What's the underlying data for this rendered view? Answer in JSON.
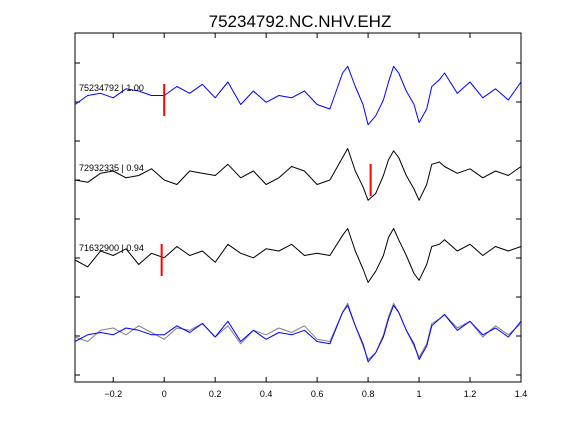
{
  "chart_data": {
    "type": "line",
    "title": "75234792.NC.NHV.EHZ",
    "xlabel": "",
    "ylabel": "",
    "xlim": [
      -0.35,
      1.4
    ],
    "x_ticks": [
      -0.2,
      0,
      0.2,
      0.4,
      0.6,
      0.8,
      1,
      1.2,
      1.4
    ],
    "x_tick_labels": [
      "−0.2",
      "0",
      "0.2",
      "0.4",
      "0.6",
      "0.8",
      "1",
      "1.2",
      "1.4"
    ],
    "grid": false,
    "colors": {
      "primary": "#0000ff",
      "secondary": "#000000",
      "overlay": "#808080",
      "pick": "#ff0000"
    },
    "traces": [
      {
        "label": "75234792 | 1.00",
        "color": "#0000ff",
        "offset": 3,
        "pick_time": 0.0,
        "x": [
          -0.35,
          -0.3,
          -0.25,
          -0.2,
          -0.15,
          -0.1,
          -0.05,
          0,
          0.05,
          0.1,
          0.15,
          0.2,
          0.25,
          0.3,
          0.35,
          0.4,
          0.45,
          0.5,
          0.55,
          0.6,
          0.65,
          0.7,
          0.72,
          0.75,
          0.78,
          0.8,
          0.83,
          0.86,
          0.88,
          0.9,
          0.92,
          0.95,
          0.98,
          1.0,
          1.03,
          1.05,
          1.08,
          1.1,
          1.15,
          1.2,
          1.25,
          1.3,
          1.35,
          1.4
        ],
        "y": [
          -0.1,
          0.1,
          0.15,
          0.05,
          0.25,
          0.2,
          0.1,
          0.1,
          0.3,
          0.15,
          0.35,
          0.05,
          0.4,
          -0.1,
          0.2,
          -0.05,
          0.1,
          0.05,
          0.2,
          -0.1,
          -0.2,
          0.6,
          0.75,
          0.3,
          -0.1,
          -0.55,
          -0.35,
          0.0,
          0.4,
          0.75,
          0.6,
          0.2,
          -0.1,
          -0.5,
          -0.2,
          0.3,
          0.45,
          0.6,
          0.15,
          0.4,
          0.05,
          0.25,
          0.0,
          0.4
        ]
      },
      {
        "label": "72932335 | 0.94",
        "color": "#000000",
        "offset": 2,
        "pick_time": 0.81,
        "x": [
          -0.35,
          -0.3,
          -0.25,
          -0.2,
          -0.15,
          -0.1,
          -0.05,
          0,
          0.05,
          0.1,
          0.15,
          0.2,
          0.25,
          0.3,
          0.35,
          0.4,
          0.45,
          0.5,
          0.55,
          0.6,
          0.65,
          0.7,
          0.72,
          0.75,
          0.78,
          0.8,
          0.83,
          0.86,
          0.88,
          0.9,
          0.92,
          0.95,
          0.98,
          1.0,
          1.03,
          1.05,
          1.08,
          1.1,
          1.15,
          1.2,
          1.25,
          1.3,
          1.35,
          1.4
        ],
        "y": [
          0.0,
          -0.05,
          0.15,
          0.2,
          0.05,
          0.1,
          0.25,
          0.0,
          -0.1,
          0.2,
          0.15,
          0.1,
          0.35,
          0.05,
          0.2,
          -0.1,
          0.05,
          0.3,
          0.2,
          -0.1,
          0.0,
          0.5,
          0.7,
          0.2,
          -0.15,
          -0.45,
          -0.3,
          0.1,
          0.45,
          0.65,
          0.5,
          0.1,
          -0.2,
          -0.45,
          -0.1,
          0.35,
          0.4,
          0.3,
          0.15,
          0.25,
          0.05,
          0.2,
          0.1,
          0.3
        ]
      },
      {
        "label": "71632900 | 0.94",
        "color": "#000000",
        "offset": 1,
        "pick_time": -0.01,
        "x": [
          -0.35,
          -0.3,
          -0.25,
          -0.2,
          -0.15,
          -0.1,
          -0.05,
          0,
          0.05,
          0.1,
          0.15,
          0.2,
          0.25,
          0.3,
          0.35,
          0.4,
          0.45,
          0.5,
          0.55,
          0.6,
          0.65,
          0.7,
          0.72,
          0.75,
          0.78,
          0.8,
          0.83,
          0.86,
          0.88,
          0.9,
          0.92,
          0.95,
          0.98,
          1.0,
          1.03,
          1.05,
          1.08,
          1.1,
          1.15,
          1.2,
          1.25,
          1.3,
          1.35,
          1.4
        ],
        "y": [
          0.0,
          -0.15,
          0.2,
          0.1,
          0.25,
          -0.1,
          0.15,
          0.05,
          0.3,
          0.1,
          0.2,
          -0.05,
          0.35,
          0.15,
          0.05,
          0.25,
          0.2,
          0.35,
          0.1,
          0.15,
          0.1,
          0.55,
          0.7,
          0.2,
          -0.2,
          -0.5,
          -0.25,
          0.1,
          0.5,
          0.7,
          0.45,
          0.1,
          -0.3,
          -0.45,
          -0.1,
          0.3,
          0.35,
          0.45,
          0.2,
          0.35,
          0.1,
          0.3,
          0.2,
          0.3
        ]
      },
      {
        "label": "",
        "color": "#808080",
        "offset": 0,
        "pick_time": null,
        "x": [
          -0.35,
          -0.3,
          -0.25,
          -0.2,
          -0.15,
          -0.1,
          -0.05,
          0,
          0.05,
          0.1,
          0.15,
          0.2,
          0.25,
          0.3,
          0.35,
          0.4,
          0.45,
          0.5,
          0.55,
          0.6,
          0.65,
          0.7,
          0.72,
          0.75,
          0.78,
          0.8,
          0.83,
          0.86,
          0.88,
          0.9,
          0.92,
          0.95,
          0.98,
          1.0,
          1.03,
          1.05,
          1.08,
          1.1,
          1.15,
          1.2,
          1.25,
          1.3,
          1.35,
          1.4
        ],
        "y": [
          0.0,
          -0.1,
          0.15,
          0.2,
          0.05,
          0.25,
          0.1,
          -0.05,
          0.2,
          0.15,
          0.3,
          0.0,
          0.25,
          -0.15,
          0.15,
          0.05,
          0.2,
          0.1,
          0.25,
          -0.05,
          -0.1,
          0.55,
          0.75,
          0.25,
          -0.2,
          -0.5,
          -0.35,
          0.05,
          0.45,
          0.75,
          0.55,
          0.15,
          -0.2,
          -0.45,
          -0.15,
          0.3,
          0.4,
          0.5,
          0.2,
          0.35,
          0.0,
          0.25,
          0.05,
          0.3
        ]
      },
      {
        "label": "",
        "color": "#0000ff",
        "offset": 0,
        "pick_time": null,
        "x": [
          -0.35,
          -0.3,
          -0.25,
          -0.2,
          -0.15,
          -0.1,
          -0.05,
          0,
          0.05,
          0.1,
          0.15,
          0.2,
          0.25,
          0.3,
          0.35,
          0.4,
          0.45,
          0.5,
          0.55,
          0.6,
          0.65,
          0.7,
          0.72,
          0.75,
          0.78,
          0.8,
          0.83,
          0.86,
          0.88,
          0.9,
          0.92,
          0.95,
          0.98,
          1.0,
          1.03,
          1.05,
          1.08,
          1.1,
          1.15,
          1.2,
          1.25,
          1.3,
          1.35,
          1.4
        ],
        "y": [
          -0.1,
          0.05,
          0.1,
          0.05,
          0.2,
          0.15,
          0.05,
          0.05,
          0.25,
          0.1,
          0.3,
          0.0,
          0.35,
          -0.1,
          0.15,
          -0.05,
          0.1,
          0.05,
          0.15,
          -0.1,
          -0.15,
          0.55,
          0.7,
          0.25,
          -0.15,
          -0.55,
          -0.35,
          0.0,
          0.4,
          0.7,
          0.55,
          0.15,
          -0.15,
          -0.5,
          -0.2,
          0.25,
          0.4,
          0.5,
          0.15,
          0.35,
          0.05,
          0.2,
          0.0,
          0.35
        ]
      }
    ]
  }
}
